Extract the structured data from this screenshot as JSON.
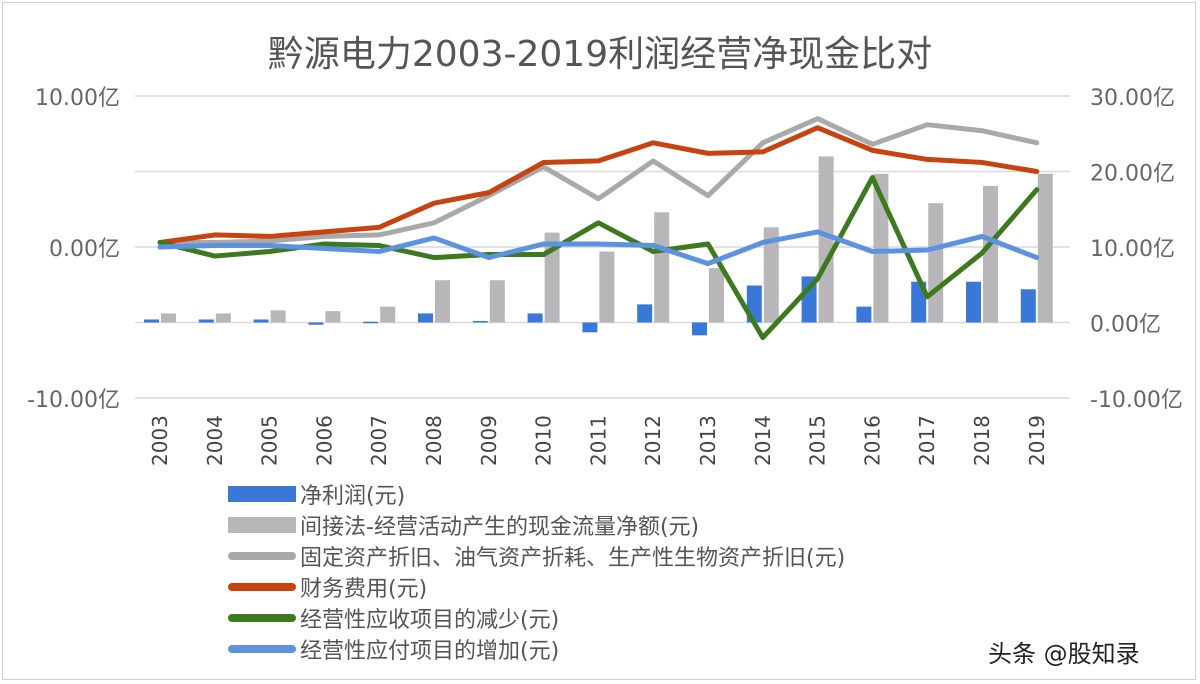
{
  "chart_data": {
    "type": "bar+line",
    "title": "黔源电力2003-2019利润经营净现金比对",
    "categories": [
      "2003",
      "2004",
      "2005",
      "2006",
      "2007",
      "2008",
      "2009",
      "2010",
      "2011",
      "2012",
      "2013",
      "2014",
      "2015",
      "2016",
      "2017",
      "2018",
      "2019"
    ],
    "left_axis": {
      "ticks": [
        "10.00亿",
        "0.00亿",
        "-10.00亿"
      ],
      "range": [
        -10,
        10
      ],
      "unit": "亿"
    },
    "right_axis": {
      "ticks": [
        "30.00亿",
        "20.00亿",
        "10.00亿",
        "0.00亿",
        "-10.00亿"
      ],
      "range": [
        -10,
        30
      ],
      "unit": "亿"
    },
    "grid": true,
    "legend_position": "bottom",
    "series": [
      {
        "name": "净利润(元)",
        "type": "bar",
        "axis": "right",
        "color": "#3a78d8",
        "values": [
          0.4,
          0.4,
          0.4,
          -0.3,
          0.1,
          1.2,
          0.2,
          1.2,
          -1.3,
          2.4,
          -1.7,
          4.9,
          6.1,
          2.1,
          5.4,
          5.4,
          4.4
        ]
      },
      {
        "name": "间接法-经营活动产生的现金流量净额(元)",
        "type": "bar",
        "axis": "right",
        "color": "#b8b6b8",
        "values": [
          1.2,
          1.2,
          1.6,
          1.5,
          2.1,
          5.6,
          5.6,
          11.9,
          9.4,
          14.6,
          7.2,
          12.6,
          22.0,
          19.7,
          15.8,
          18.1,
          19.7
        ]
      },
      {
        "name": "固定资产折旧、油气资产折耗、生产性生物资产折旧(元)",
        "type": "line",
        "axis": "left",
        "color": "#a9a9ab",
        "values": [
          0.3,
          0.3,
          0.4,
          0.7,
          0.8,
          1.6,
          3.4,
          5.3,
          3.2,
          5.7,
          3.4,
          6.9,
          8.5,
          6.8,
          8.1,
          7.7,
          6.9
        ]
      },
      {
        "name": "财务费用(元)",
        "type": "line",
        "axis": "left",
        "color": "#c8430f",
        "values": [
          0.3,
          0.8,
          0.7,
          1.0,
          1.3,
          2.9,
          3.6,
          5.6,
          5.7,
          6.9,
          6.2,
          6.3,
          7.9,
          6.4,
          5.8,
          5.6,
          5.0
        ]
      },
      {
        "name": "经营性应收项目的减少(元)",
        "type": "line",
        "axis": "left",
        "color": "#3d7a1f",
        "values": [
          0.3,
          -0.6,
          -0.3,
          0.2,
          0.1,
          -0.7,
          -0.5,
          -0.5,
          1.6,
          -0.3,
          0.2,
          -6.0,
          -2.1,
          4.6,
          -3.3,
          -0.4,
          3.8
        ]
      },
      {
        "name": "经营性应付项目的增加(元)",
        "type": "line",
        "axis": "left",
        "color": "#5b93e0",
        "values": [
          0.0,
          0.1,
          0.1,
          -0.1,
          -0.3,
          0.6,
          -0.7,
          0.2,
          0.2,
          0.1,
          -1.1,
          0.3,
          1.0,
          -0.3,
          -0.2,
          0.7,
          -0.7
        ]
      }
    ]
  },
  "watermark": "头条 @股知录"
}
